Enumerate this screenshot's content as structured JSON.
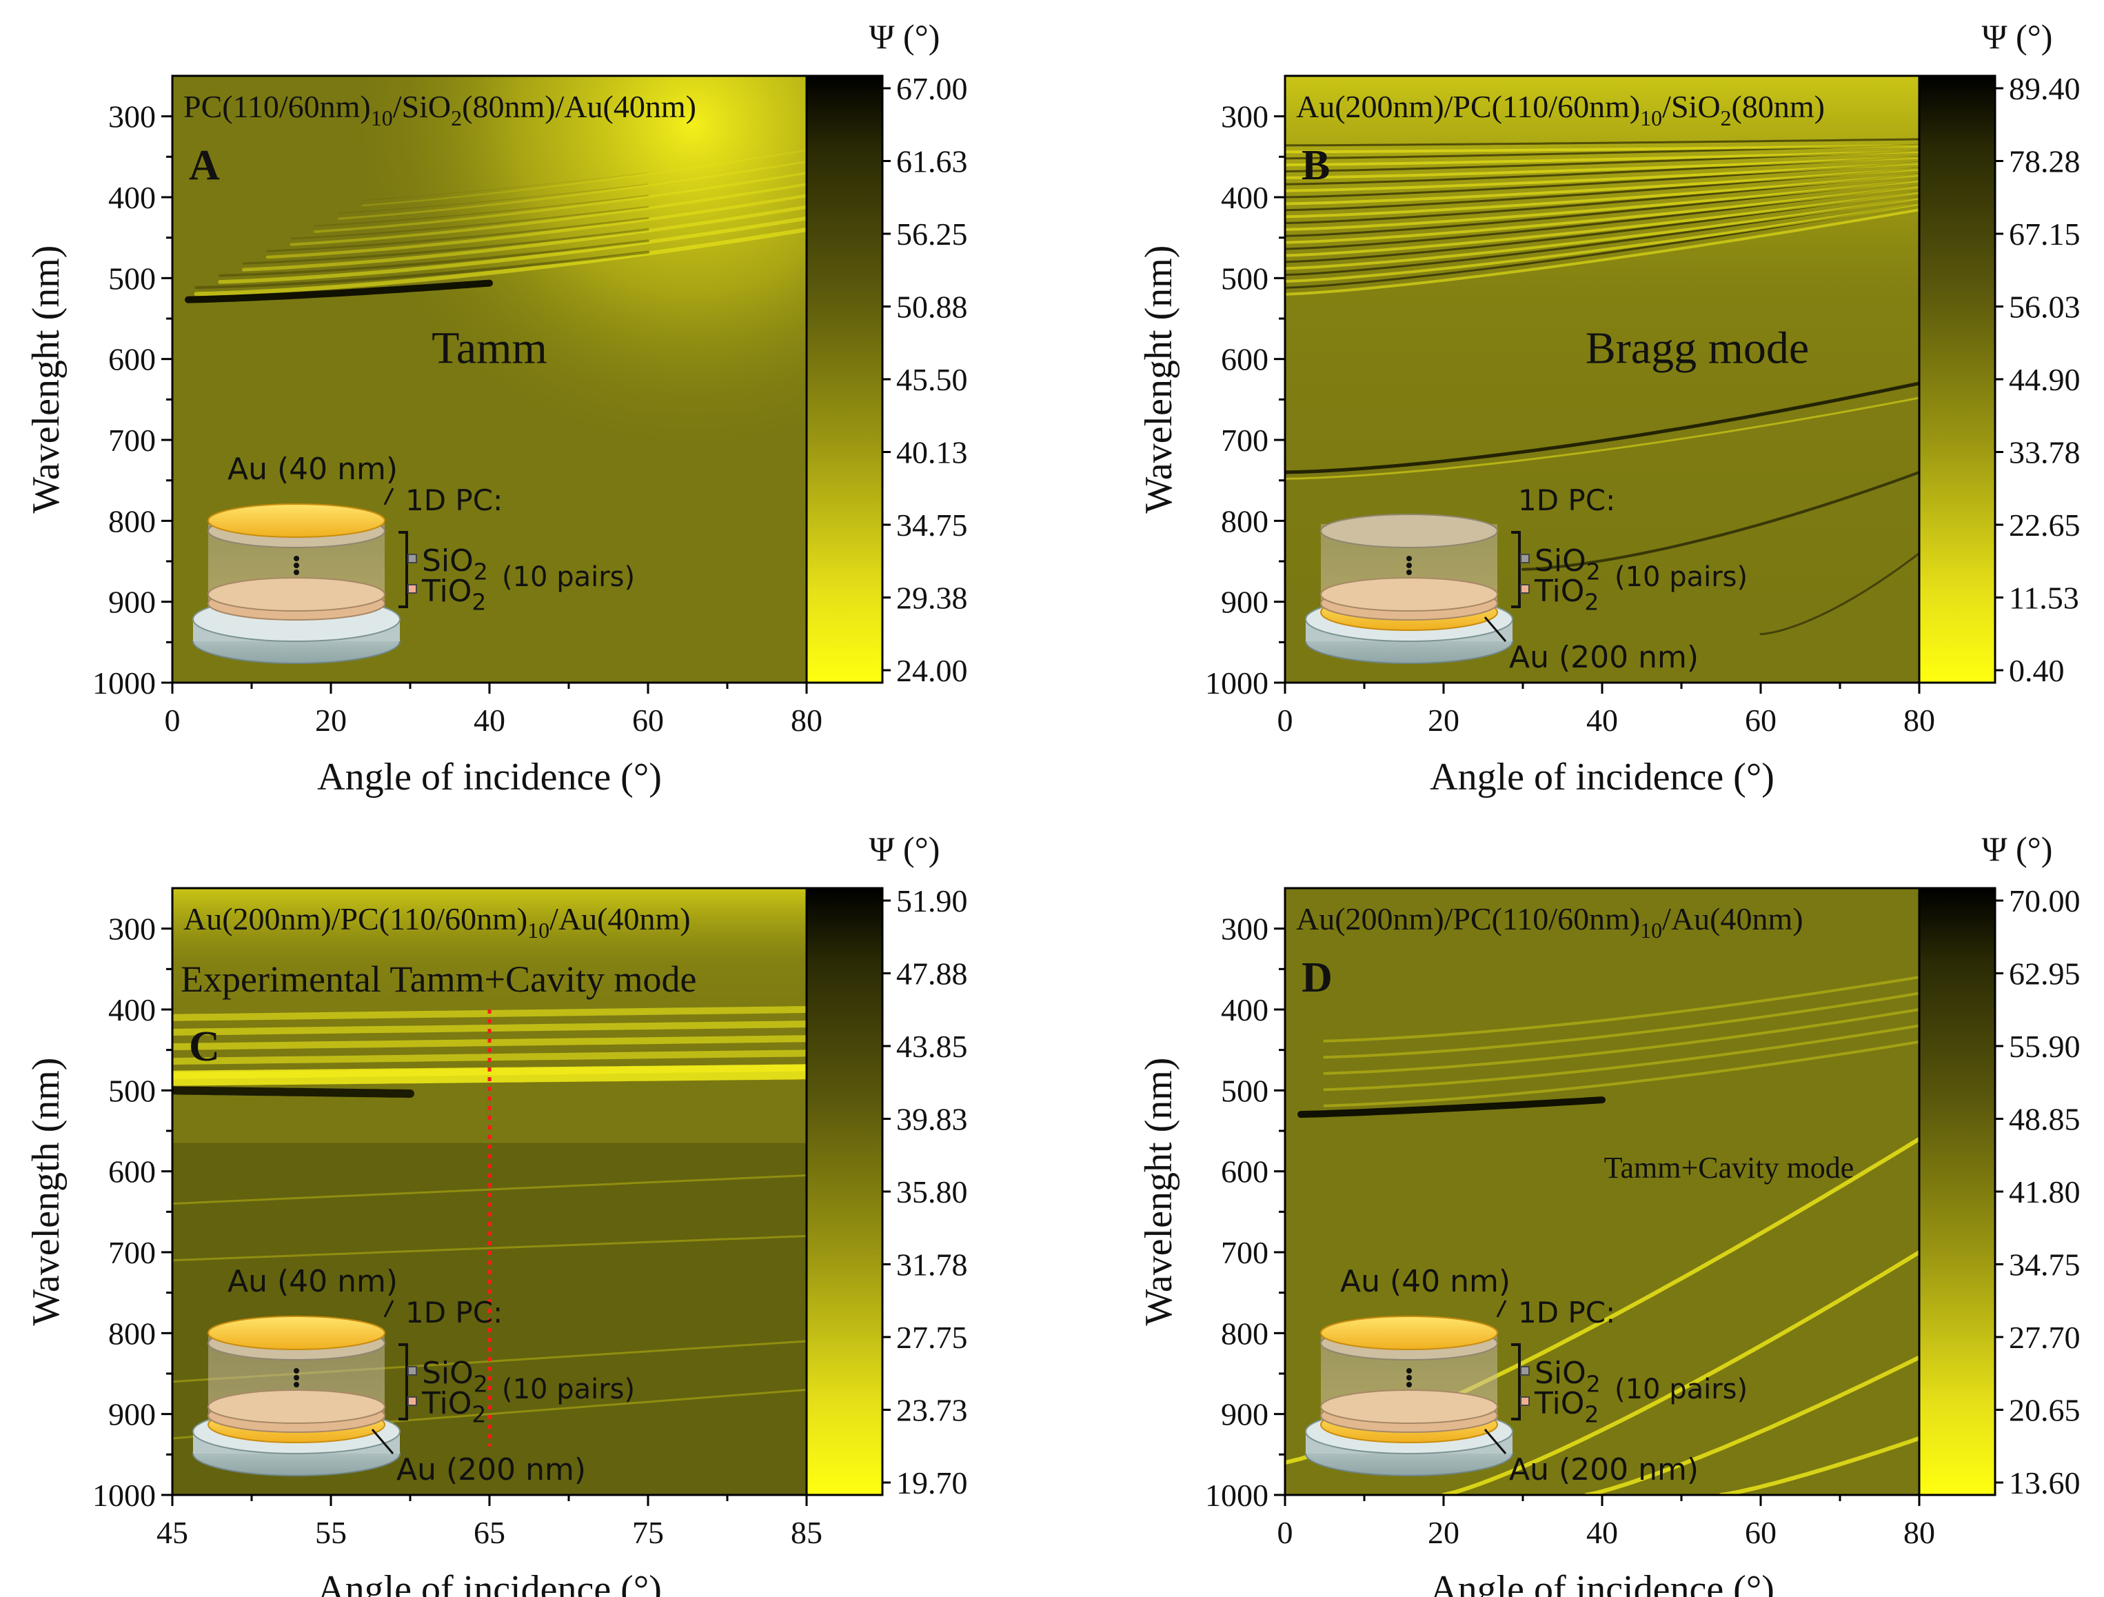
{
  "chart_data": [
    {
      "type": "heatmap",
      "panel_label": "A",
      "title": "PC(110/60nm)10/SiO2(80nm)/Au(40nm)",
      "title_parts": [
        {
          "t": "PC(110/60nm)",
          "sub": false
        },
        {
          "t": "10",
          "sub": true
        },
        {
          "t": "/SiO",
          "sub": false
        },
        {
          "t": "2",
          "sub": true
        },
        {
          "t": "(80nm)/Au(40nm)",
          "sub": false
        }
      ],
      "xlabel": "Angle of incidence (°)",
      "ylabel": "Wavelenght (nm)",
      "xlim": [
        0,
        80
      ],
      "ylim": [
        250,
        1000
      ],
      "x_ticks": [
        "0",
        "20",
        "40",
        "60",
        "80"
      ],
      "y_ticks": [
        "300",
        "400",
        "500",
        "600",
        "700",
        "800",
        "900",
        "1000"
      ],
      "colorbar_title": "Ψ (°)",
      "colorbar_ticks": [
        "67.00",
        "61.63",
        "56.25",
        "50.88",
        "45.50",
        "40.13",
        "34.75",
        "29.38",
        "24.00"
      ],
      "annotation": "Tamm",
      "inset": {
        "top_metal": "Au (40 nm)",
        "pc_label": "1D PC:",
        "sio2": "SiO2",
        "tio2": "TiO2",
        "pairs": "(10 pairs)",
        "bottom_metal": ""
      }
    },
    {
      "type": "heatmap",
      "panel_label": "B",
      "title": "Au(200nm)/PC(110/60nm)10/SiO2(80nm)",
      "title_parts": [
        {
          "t": "Au(200nm)/PC(110/60nm)",
          "sub": false
        },
        {
          "t": "10",
          "sub": true
        },
        {
          "t": "/SiO",
          "sub": false
        },
        {
          "t": "2",
          "sub": true
        },
        {
          "t": "(80nm)",
          "sub": false
        }
      ],
      "xlabel": "Angle of incidence (°)",
      "ylabel": "Wavelenght (nm)",
      "xlim": [
        0,
        80
      ],
      "ylim": [
        250,
        1000
      ],
      "x_ticks": [
        "0",
        "20",
        "40",
        "60",
        "80"
      ],
      "y_ticks": [
        "300",
        "400",
        "500",
        "600",
        "700",
        "800",
        "900",
        "1000"
      ],
      "colorbar_title": "Ψ (°)",
      "colorbar_ticks": [
        "89.40",
        "78.28",
        "67.15",
        "56.03",
        "44.90",
        "33.78",
        "22.65",
        "11.53",
        "0.40"
      ],
      "annotation": "Bragg mode",
      "inset": {
        "top_metal": "",
        "pc_label": "1D PC:",
        "sio2": "SiO2",
        "tio2": "TiO2",
        "pairs": "(10 pairs)",
        "bottom_metal": "Au (200 nm)"
      }
    },
    {
      "type": "heatmap",
      "panel_label": "C",
      "title": "Au(200nm)/PC(110/60nm)10/Au(40nm)",
      "title_parts": [
        {
          "t": "Au(200nm)/PC(110/60nm)",
          "sub": false
        },
        {
          "t": "10",
          "sub": true
        },
        {
          "t": "/Au(40nm)",
          "sub": false
        }
      ],
      "xlabel": "Angle of incidence (°)",
      "ylabel": "Wavelength (nm)",
      "xlim": [
        45,
        85
      ],
      "ylim": [
        250,
        1000
      ],
      "x_ticks": [
        "45",
        "55",
        "65",
        "75",
        "85"
      ],
      "y_ticks": [
        "300",
        "400",
        "500",
        "600",
        "700",
        "800",
        "900",
        "1000"
      ],
      "colorbar_title": "Ψ (°)",
      "colorbar_ticks": [
        "51.90",
        "47.88",
        "43.85",
        "39.83",
        "35.80",
        "31.78",
        "27.75",
        "23.73",
        "19.70"
      ],
      "annotation": "Experimental Tamm+Cavity mode",
      "marker_line": {
        "angle": 65,
        "wavelength_range": [
          400,
          940
        ],
        "style": "red dotted"
      },
      "inset": {
        "top_metal": "Au (40 nm)",
        "pc_label": "1D PC:",
        "sio2": "SiO2",
        "tio2": "TiO2",
        "pairs": "(10 pairs)",
        "bottom_metal": "Au (200 nm)"
      }
    },
    {
      "type": "heatmap",
      "panel_label": "D",
      "title": "Au(200nm)/PC(110/60nm)10/Au(40nm)",
      "title_parts": [
        {
          "t": "Au(200nm)/PC(110/60nm)",
          "sub": false
        },
        {
          "t": "10",
          "sub": true
        },
        {
          "t": "/Au(40nm)",
          "sub": false
        }
      ],
      "xlabel": "Angle of incidence (°)",
      "ylabel": "Wavelenght (nm)",
      "xlim": [
        0,
        80
      ],
      "ylim": [
        250,
        1000
      ],
      "x_ticks": [
        "0",
        "20",
        "40",
        "60",
        "80"
      ],
      "y_ticks": [
        "300",
        "400",
        "500",
        "600",
        "700",
        "800",
        "900",
        "1000"
      ],
      "colorbar_title": "Ψ (°)",
      "colorbar_ticks": [
        "70.00",
        "62.95",
        "55.90",
        "48.85",
        "41.80",
        "34.75",
        "27.70",
        "20.65",
        "13.60"
      ],
      "annotation": "Tamm+Cavity mode",
      "inset": {
        "top_metal": "Au (40 nm)",
        "pc_label": "1D PC:",
        "sio2": "SiO2",
        "tio2": "TiO2",
        "pairs": "(10 pairs)",
        "bottom_metal": "Au (200 nm)"
      }
    }
  ],
  "colors": {
    "map_base": "#7a7812",
    "map_bright": "#fbf51a",
    "map_dark": "#111100",
    "marker": "#ff1a1a",
    "text": "#111111"
  }
}
